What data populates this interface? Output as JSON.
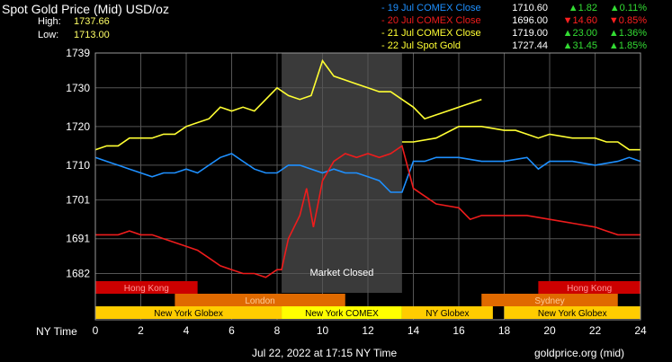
{
  "header": {
    "title": "Spot Gold Price (Mid) USD/oz",
    "high_label": "High:",
    "high_value": "1737.66",
    "low_label": "Low:",
    "low_value": "1713.00"
  },
  "legend": [
    {
      "name": "- 19 Jul COMEX Close",
      "price": "1710.60",
      "change": "▲1.82",
      "pct": "▲0.11%",
      "color": "#1e90ff",
      "dir": "up"
    },
    {
      "name": "- 20 Jul COMEX Close",
      "price": "1696.00",
      "change": "▼14.60",
      "pct": "▼0.85%",
      "color": "#ee1c1c",
      "dir": "dn"
    },
    {
      "name": "- 21 Jul COMEX Close",
      "price": "1719.00",
      "change": "▲23.00",
      "pct": "▲1.36%",
      "color": "#ffff33",
      "dir": "up"
    },
    {
      "name": "- 22 Jul Spot Gold",
      "price": "1727.44",
      "change": "▲31.45",
      "pct": "▲1.85%",
      "color": "#ffff33",
      "dir": "up"
    }
  ],
  "market_closed_label": "Market Closed",
  "x_axis_label": "NY Time",
  "footer": {
    "timestamp": "Jul 22, 2022 at 17:15 NY Time",
    "source": "goldprice.org (mid)"
  },
  "sessions": {
    "row1": [
      {
        "label": "Hong Kong",
        "start": 0,
        "end": 4.5,
        "color": "#cc0000",
        "text": "#ff9999"
      },
      {
        "label": "Hong Kong",
        "start": 19.5,
        "end": 24,
        "color": "#cc0000",
        "text": "#ff9999"
      }
    ],
    "row2": [
      {
        "label": "London",
        "start": 3.5,
        "end": 11,
        "color": "#e06a00",
        "text": "#ffcc99"
      },
      {
        "label": "Sydney",
        "start": 17,
        "end": 23,
        "color": "#e06a00",
        "text": "#ffcc99"
      }
    ],
    "row3": [
      {
        "label": "New York Globex",
        "start": 0,
        "end": 8.2,
        "color": "#ffcc00",
        "text": "#000000"
      },
      {
        "label": "New York COMEX",
        "start": 8.2,
        "end": 13.5,
        "color": "#ffff00",
        "text": "#000000"
      },
      {
        "label": "NY Globex",
        "start": 13.5,
        "end": 17.5,
        "color": "#ffcc00",
        "text": "#000000"
      },
      {
        "label": "New York Globex",
        "start": 18,
        "end": 24,
        "color": "#ffcc00",
        "text": "#000000"
      }
    ]
  },
  "chart_data": {
    "type": "line",
    "x_range": [
      0,
      24
    ],
    "ylim": [
      1677,
      1739
    ],
    "yticks": [
      1739,
      1730,
      1720,
      1710,
      1701,
      1691,
      1682
    ],
    "xticks": [
      0,
      2,
      4,
      6,
      8,
      10,
      12,
      14,
      16,
      18,
      20,
      22,
      24
    ],
    "shaded_region": [
      8.2,
      13.5
    ],
    "grid": true,
    "series": [
      {
        "name": "19 Jul COMEX Close",
        "color": "#1e90ff",
        "points": [
          [
            0,
            1712
          ],
          [
            0.5,
            1711
          ],
          [
            1,
            1710
          ],
          [
            1.5,
            1709
          ],
          [
            2,
            1708
          ],
          [
            2.5,
            1707
          ],
          [
            3,
            1708
          ],
          [
            3.5,
            1708
          ],
          [
            4,
            1709
          ],
          [
            4.5,
            1708
          ],
          [
            5,
            1710
          ],
          [
            5.5,
            1712
          ],
          [
            6,
            1713
          ],
          [
            6.5,
            1711
          ],
          [
            7,
            1709
          ],
          [
            7.5,
            1708
          ],
          [
            8,
            1708
          ],
          [
            8.5,
            1710
          ],
          [
            9,
            1710
          ],
          [
            9.5,
            1709
          ],
          [
            10,
            1708
          ],
          [
            10.5,
            1709
          ],
          [
            11,
            1708
          ],
          [
            11.5,
            1708
          ],
          [
            12,
            1707
          ],
          [
            12.5,
            1706
          ],
          [
            13,
            1703
          ],
          [
            13.5,
            1703
          ],
          [
            14,
            1711
          ],
          [
            14.5,
            1711
          ],
          [
            15,
            1712
          ],
          [
            16,
            1712
          ],
          [
            17,
            1711
          ],
          [
            18,
            1711
          ],
          [
            19,
            1712
          ],
          [
            19.5,
            1709
          ],
          [
            20,
            1711
          ],
          [
            21,
            1711
          ],
          [
            22,
            1710
          ],
          [
            23,
            1711
          ],
          [
            23.5,
            1712
          ],
          [
            24,
            1711
          ]
        ]
      },
      {
        "name": "20 Jul COMEX Close",
        "color": "#ee1c1c",
        "points": [
          [
            0,
            1692
          ],
          [
            0.5,
            1692
          ],
          [
            1,
            1692
          ],
          [
            1.5,
            1693
          ],
          [
            2,
            1692
          ],
          [
            2.5,
            1692
          ],
          [
            3,
            1691
          ],
          [
            3.5,
            1690
          ],
          [
            4,
            1689
          ],
          [
            4.5,
            1688
          ],
          [
            5,
            1686
          ],
          [
            5.5,
            1684
          ],
          [
            6,
            1683
          ],
          [
            6.5,
            1682
          ],
          [
            7,
            1682
          ],
          [
            7.5,
            1681
          ],
          [
            8,
            1683
          ],
          [
            8.2,
            1683
          ],
          [
            8.5,
            1691
          ],
          [
            9,
            1697
          ],
          [
            9.3,
            1704
          ],
          [
            9.6,
            1694
          ],
          [
            9.8,
            1700
          ],
          [
            10,
            1706
          ],
          [
            10.5,
            1711
          ],
          [
            11,
            1713
          ],
          [
            11.5,
            1712
          ],
          [
            12,
            1713
          ],
          [
            12.5,
            1712
          ],
          [
            13,
            1713
          ],
          [
            13.5,
            1715
          ],
          [
            14,
            1704
          ],
          [
            14.5,
            1702
          ],
          [
            15,
            1700
          ],
          [
            16,
            1699
          ],
          [
            16.5,
            1696
          ],
          [
            17,
            1697
          ],
          [
            18,
            1697
          ],
          [
            19,
            1697
          ],
          [
            20,
            1696
          ],
          [
            21,
            1695
          ],
          [
            22,
            1694
          ],
          [
            22.5,
            1693
          ],
          [
            23,
            1692
          ],
          [
            24,
            1692
          ]
        ]
      },
      {
        "name": "21 Jul COMEX Close",
        "color": "#ffff33",
        "points": [
          [
            0,
            1714
          ],
          [
            0.5,
            1715
          ],
          [
            1,
            1715
          ],
          [
            1.5,
            1717
          ],
          [
            2,
            1717
          ],
          [
            2.5,
            1717
          ],
          [
            3,
            1718
          ],
          [
            3.5,
            1718
          ],
          [
            4,
            1720
          ],
          [
            4.5,
            1721
          ],
          [
            5,
            1722
          ],
          [
            5.5,
            1725
          ],
          [
            6,
            1724
          ],
          [
            6.5,
            1725
          ],
          [
            7,
            1724
          ],
          [
            7.5,
            1727
          ],
          [
            8,
            1730
          ],
          [
            8.5,
            1728
          ],
          [
            9,
            1727
          ],
          [
            9.5,
            1728
          ],
          [
            10,
            1737
          ],
          [
            10.5,
            1733
          ],
          [
            11,
            1732
          ],
          [
            11.5,
            1731
          ],
          [
            12,
            1730
          ],
          [
            12.5,
            1729
          ],
          [
            13,
            1729
          ],
          [
            13.5,
            1727
          ],
          [
            14,
            1725
          ],
          [
            14.5,
            1722
          ],
          [
            15,
            1723
          ],
          [
            15.5,
            1724
          ],
          [
            16,
            1725
          ],
          [
            16.5,
            1726
          ],
          [
            17,
            1727
          ]
        ]
      },
      {
        "name": "22 Jul Spot Gold",
        "color": "#ffff33",
        "points": [
          [
            13.5,
            1716
          ],
          [
            14,
            1716
          ],
          [
            15,
            1717
          ],
          [
            16,
            1720
          ],
          [
            17,
            1720
          ],
          [
            18,
            1719
          ],
          [
            18.5,
            1719
          ],
          [
            19,
            1718
          ],
          [
            19.5,
            1717
          ],
          [
            20,
            1718
          ],
          [
            21,
            1717
          ],
          [
            22,
            1717
          ],
          [
            22.5,
            1716
          ],
          [
            23,
            1716
          ],
          [
            23.5,
            1714
          ],
          [
            24,
            1714
          ]
        ]
      }
    ]
  }
}
